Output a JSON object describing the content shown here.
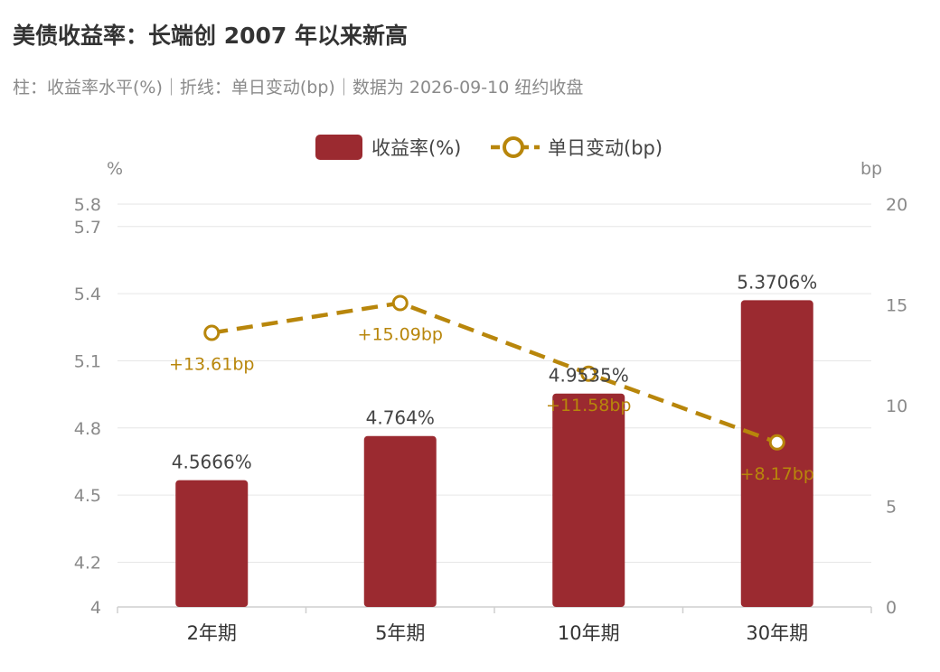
{
  "title": "美债收益率：长端创 2007 年以来新高",
  "subtitle": "柱：收益率水平(%)｜折线：单日变动(bp)｜数据为 2026-09-10 纽约收盘",
  "chart_data": {
    "type": "bar",
    "categories": [
      "2年期",
      "5年期",
      "10年期",
      "30年期"
    ],
    "series": [
      {
        "name": "收益率(%)",
        "type": "bar",
        "axis": "left",
        "values": [
          4.5666,
          4.764,
          4.9535,
          5.3706
        ],
        "labels": [
          "4.5666%",
          "4.764%",
          "4.9535%",
          "5.3706%"
        ],
        "color": "#9b2a30"
      },
      {
        "name": "单日变动(bp)",
        "type": "line",
        "axis": "right",
        "values": [
          13.61,
          15.09,
          11.58,
          8.17
        ],
        "labels": [
          "+13.61bp",
          "+15.09bp",
          "+11.58bp",
          "+8.17bp"
        ],
        "color": "#b8860b"
      }
    ],
    "y_left": {
      "unit": "%",
      "ylim": [
        4,
        5.8
      ],
      "ticks": [
        "4",
        "4.2",
        "4.5",
        "4.8",
        "5.1",
        "5.4",
        "5.7",
        "5.8"
      ],
      "tick_values": [
        4,
        4.2,
        4.5,
        4.8,
        5.1,
        5.4,
        5.7,
        5.8
      ]
    },
    "y_right": {
      "unit": "bp",
      "ylim": [
        0,
        20
      ],
      "ticks": [
        "0",
        "5",
        "10",
        "15",
        "20"
      ],
      "tick_values": [
        0,
        5,
        10,
        15,
        20
      ]
    },
    "legend_position": "top-center",
    "grid": true
  }
}
